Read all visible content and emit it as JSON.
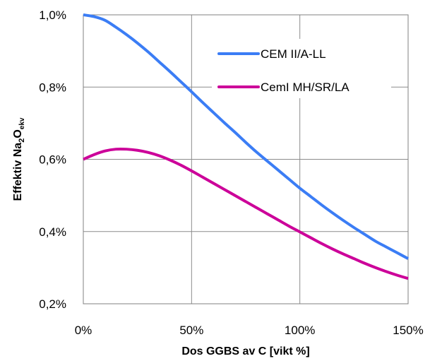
{
  "chart_data": {
    "type": "line",
    "title": "",
    "xlabel": "Dos GGBS av C [vikt %]",
    "ylabel_parts": [
      "Effektiv Na",
      "2",
      "O",
      "ekv"
    ],
    "xlim": [
      0,
      150
    ],
    "ylim": [
      0.2,
      1.0
    ],
    "x_ticks": [
      0,
      50,
      100,
      150
    ],
    "x_tick_labels": [
      "0%",
      "50%",
      "100%",
      "150%"
    ],
    "y_ticks": [
      0.2,
      0.4,
      0.6,
      0.8,
      1.0
    ],
    "y_tick_labels": [
      "0,2%",
      "0,4%",
      "0,6%",
      "0,8%",
      "1,0%"
    ],
    "grid": true,
    "legend_position": "top-right",
    "series": [
      {
        "name": "CEM II/A-LL",
        "color": "#3B7DF5",
        "x": [
          0,
          5,
          10,
          15,
          20,
          25,
          30,
          35,
          40,
          45,
          50,
          55,
          60,
          65,
          70,
          75,
          80,
          85,
          90,
          95,
          100,
          105,
          110,
          115,
          120,
          125,
          130,
          135,
          140,
          145,
          150
        ],
        "y": [
          1.0,
          0.995,
          0.985,
          0.966,
          0.945,
          0.922,
          0.897,
          0.87,
          0.843,
          0.815,
          0.787,
          0.758,
          0.73,
          0.702,
          0.675,
          0.647,
          0.62,
          0.595,
          0.57,
          0.545,
          0.52,
          0.497,
          0.474,
          0.452,
          0.431,
          0.411,
          0.392,
          0.373,
          0.357,
          0.341,
          0.325
        ]
      },
      {
        "name": "CemI MH/SR/LA",
        "color": "#CC0099",
        "x": [
          0,
          5,
          10,
          15,
          20,
          25,
          30,
          35,
          40,
          45,
          50,
          55,
          60,
          65,
          70,
          75,
          80,
          85,
          90,
          95,
          100,
          105,
          110,
          115,
          120,
          125,
          130,
          135,
          140,
          145,
          150
        ],
        "y": [
          0.6,
          0.613,
          0.623,
          0.628,
          0.628,
          0.625,
          0.619,
          0.61,
          0.598,
          0.584,
          0.568,
          0.551,
          0.534,
          0.517,
          0.5,
          0.483,
          0.466,
          0.449,
          0.432,
          0.415,
          0.399,
          0.383,
          0.367,
          0.352,
          0.338,
          0.325,
          0.312,
          0.3,
          0.289,
          0.279,
          0.27
        ]
      }
    ]
  }
}
